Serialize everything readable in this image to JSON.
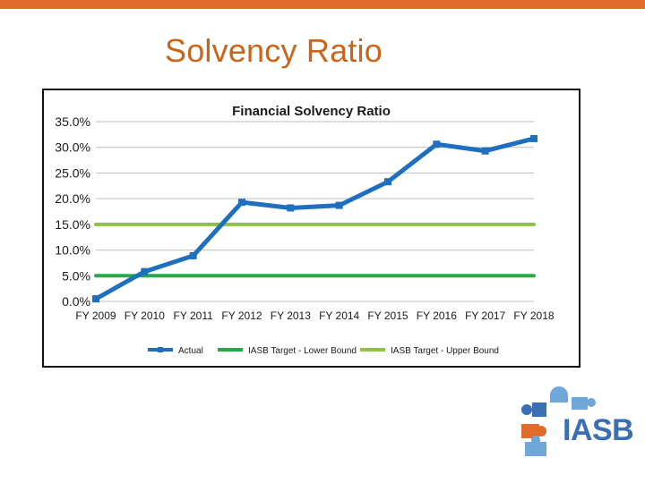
{
  "slide": {
    "title": "Solvency Ratio"
  },
  "logo": {
    "text": "IASB",
    "colors": {
      "blue": "#3a6fb3",
      "light_blue": "#6fa7d8",
      "orange": "#e06c2b"
    }
  },
  "colors": {
    "top_bar": "#e06c2b",
    "title": "#c8651b",
    "actual": "#1f6fbf",
    "lower": "#2aa74a",
    "upper": "#8ec04a",
    "grid": "#bfbfbf"
  },
  "chart_data": {
    "type": "line",
    "title": "Financial Solvency Ratio",
    "categories": [
      "FY 2009",
      "FY 2010",
      "FY 2011",
      "FY 2012",
      "FY 2013",
      "FY 2014",
      "FY 2015",
      "FY 2016",
      "FY 2017",
      "FY 2018"
    ],
    "series": [
      {
        "name": "Actual",
        "values": [
          0.5,
          5.8,
          8.9,
          19.3,
          18.2,
          18.7,
          23.3,
          30.6,
          29.3,
          31.7
        ]
      },
      {
        "name": "IASB Target - Lower Bound",
        "values": [
          5.0,
          5.0,
          5.0,
          5.0,
          5.0,
          5.0,
          5.0,
          5.0,
          5.0,
          5.0
        ]
      },
      {
        "name": "IASB Target - Upper Bound",
        "values": [
          15.0,
          15.0,
          15.0,
          15.0,
          15.0,
          15.0,
          15.0,
          15.0,
          15.0,
          15.0
        ]
      }
    ],
    "yticks": [
      "0.0%",
      "5.0%",
      "10.0%",
      "15.0%",
      "20.0%",
      "25.0%",
      "30.0%",
      "35.0%"
    ],
    "ylim": [
      0,
      35
    ],
    "xlabel": "",
    "ylabel": "",
    "grid": true,
    "legend_position": "bottom"
  }
}
